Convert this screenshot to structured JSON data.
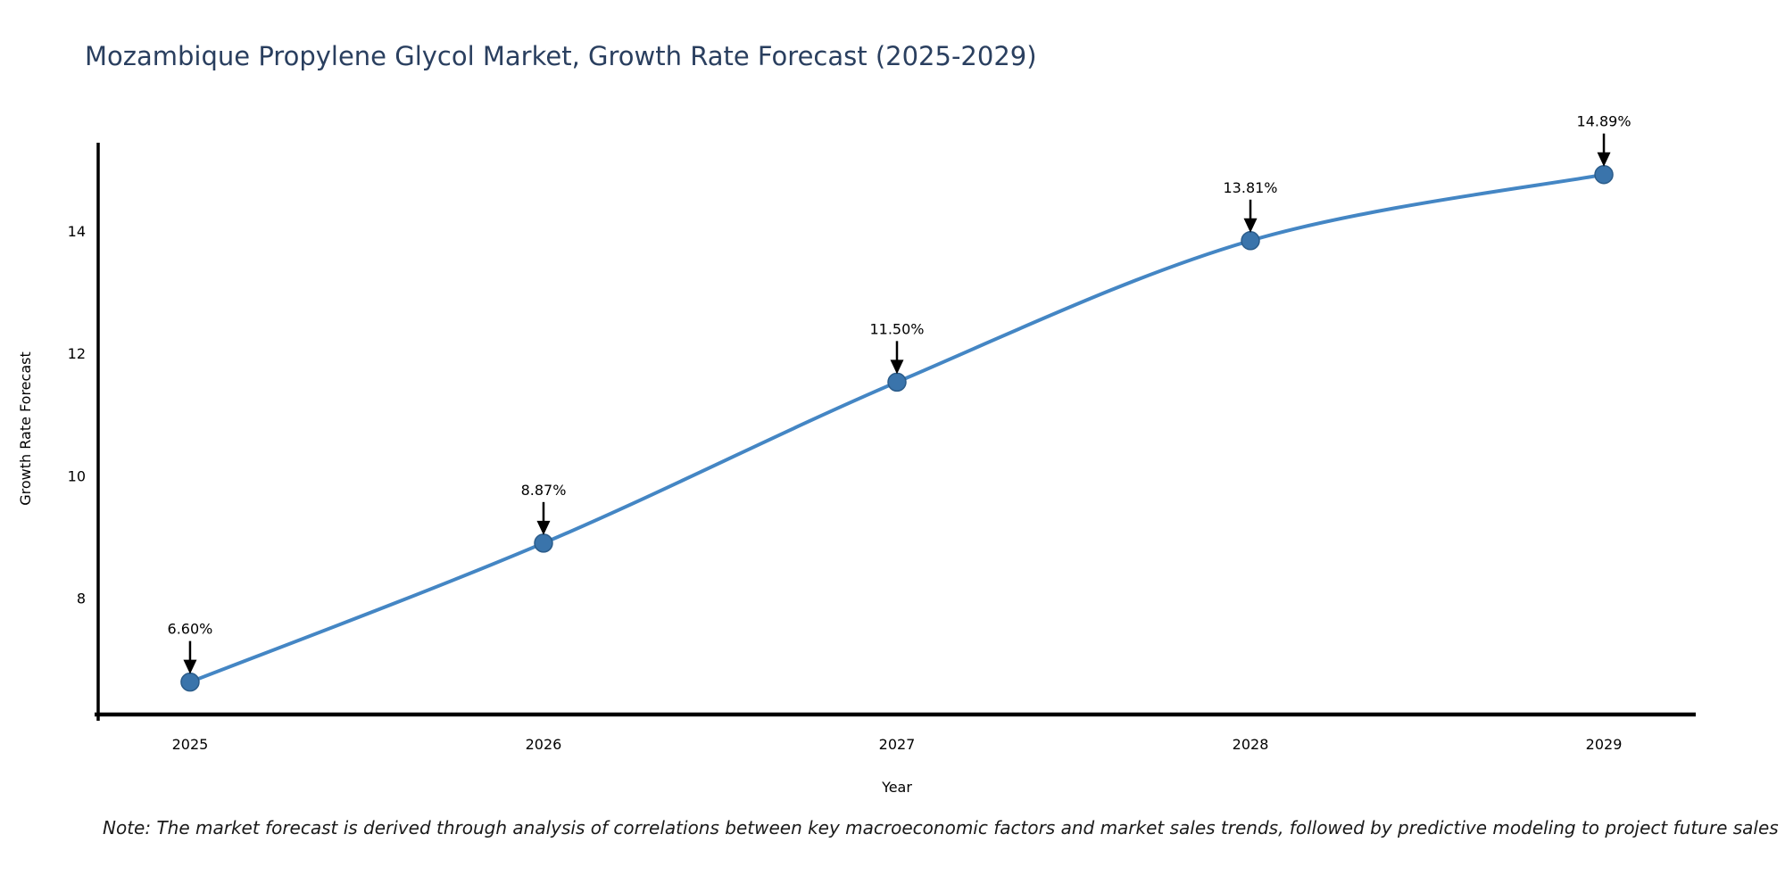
{
  "note": "Note: The market forecast is derived through analysis of correlations between key macroeconomic factors and market sales trends, followed by predictive modeling to project future sales",
  "chart_data": {
    "type": "line",
    "title": "Mozambique Propylene Glycol Market, Growth Rate Forecast (2025-2029)",
    "xlabel": "Year",
    "ylabel": "Growth Rate Forecast",
    "x": [
      2025,
      2026,
      2027,
      2028,
      2029
    ],
    "values": [
      6.6,
      8.87,
      11.5,
      13.81,
      14.89
    ],
    "point_labels": [
      "6.60%",
      "8.87%",
      "11.50%",
      "13.81%",
      "14.89%"
    ],
    "xticks": [
      2025,
      2026,
      2027,
      2028,
      2029
    ],
    "yticks": [
      8,
      10,
      12,
      14
    ],
    "xlim": [
      2024.74,
      2029.26
    ],
    "ylim": [
      6.07,
      15.41
    ],
    "grid": false,
    "legend": "none",
    "line_shape": "spline",
    "colors": {
      "line": "#4486c4",
      "marker_fill": "#3a74ab",
      "marker_edge": "#2b5c8a",
      "axis": "#000000",
      "axis_text": "#2a3f5f",
      "annotation_text": "#232a37",
      "arrow": "#000000",
      "background": "#ffffff"
    }
  }
}
